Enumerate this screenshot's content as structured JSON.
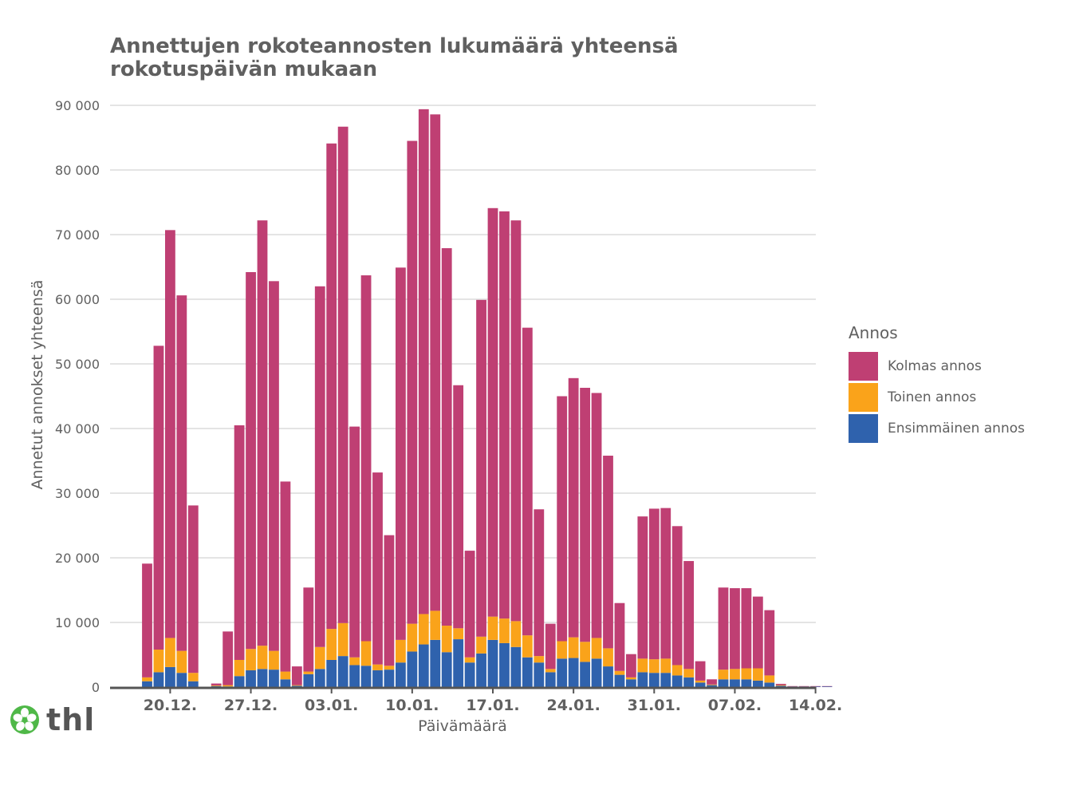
{
  "title_line1": "Annettujen rokoteannosten lukumäärä yhteensä",
  "title_line2": "rokotuspäivän mukaan",
  "logo_text": "thl",
  "colors": {
    "kolmas": "#bf3f73",
    "toinen": "#faa31a",
    "ensimmainen": "#2f62ad",
    "grid": "#dcdcdc",
    "axis": "#606060",
    "text": "#606060",
    "logo_green": "#4fb848"
  },
  "legend": {
    "title": "Annos",
    "items": [
      {
        "label": "Kolmas annos",
        "color": "#bf3f73"
      },
      {
        "label": "Toinen annos",
        "color": "#faa31a"
      },
      {
        "label": "Ensimmäinen annos",
        "color": "#2f62ad"
      }
    ]
  },
  "chart_data": {
    "type": "bar",
    "stacked": true,
    "title": "Annettujen rokoteannosten lukumäärä yhteensä rokotuspäivän mukaan",
    "xlabel": "Päivämäärä",
    "ylabel": "Annetut annokset yhteensä",
    "ylim": [
      0,
      90000
    ],
    "yticks": [
      0,
      10000,
      20000,
      30000,
      40000,
      50000,
      60000,
      70000,
      80000,
      90000
    ],
    "ytick_labels": [
      "0",
      "10 000",
      "20 000",
      "30 000",
      "40 000",
      "50 000",
      "60 000",
      "70 000",
      "80 000",
      "90 000"
    ],
    "xtick_labels": [
      "20.12.",
      "27.12.",
      "03.01.",
      "10.01.",
      "17.01.",
      "24.01.",
      "31.01.",
      "07.02.",
      "14.02."
    ],
    "xtick_day_index": [
      2,
      9,
      16,
      23,
      30,
      37,
      44,
      51,
      58
    ],
    "first_day_index": 0,
    "series": [
      {
        "name": "Ensimmäinen annos",
        "key": "ensimmainen",
        "values": [
          900,
          2300,
          3100,
          2200,
          900,
          0,
          150,
          100,
          1700,
          2600,
          2800,
          2700,
          1200,
          200,
          2000,
          2800,
          4200,
          4800,
          3400,
          3300,
          2600,
          2700,
          3800,
          5500,
          6600,
          7300,
          5400,
          7400,
          3800,
          5200,
          7300,
          6800,
          6200,
          4600,
          3800,
          2300,
          4400,
          4500,
          3900,
          4400,
          3200,
          1900,
          1200,
          2300,
          2200,
          2200,
          1800,
          1500,
          700,
          300,
          1200,
          1200,
          1200,
          1000,
          700,
          200,
          100,
          100,
          100,
          100
        ]
      },
      {
        "name": "Toinen annos",
        "key": "toinen",
        "values": [
          600,
          3500,
          4500,
          3400,
          1300,
          0,
          100,
          200,
          2500,
          3300,
          3600,
          2900,
          1200,
          100,
          400,
          3400,
          4800,
          5100,
          1200,
          3800,
          900,
          600,
          3500,
          4300,
          4700,
          4500,
          4100,
          1700,
          800,
          2600,
          3600,
          3800,
          4000,
          3400,
          1000,
          500,
          2700,
          3200,
          3100,
          3200,
          2800,
          600,
          300,
          2100,
          2100,
          2200,
          1600,
          1300,
          300,
          100,
          1500,
          1600,
          1700,
          1900,
          1100,
          100,
          0,
          0,
          0,
          0
        ]
      },
      {
        "name": "Kolmas annos",
        "key": "kolmas",
        "values": [
          17600,
          47000,
          63100,
          55000,
          25900,
          0,
          300,
          8300,
          36300,
          58300,
          65800,
          57200,
          29400,
          2900,
          13000,
          55800,
          75100,
          76800,
          35700,
          56600,
          29700,
          20200,
          57600,
          74700,
          78100,
          76800,
          58400,
          37600,
          16500,
          52100,
          63200,
          63000,
          62000,
          47600,
          22700,
          7000,
          37900,
          40100,
          39300,
          37900,
          29800,
          10500,
          3600,
          22000,
          23300,
          23300,
          21500,
          16700,
          3000,
          800,
          12700,
          12500,
          12400,
          11100,
          10100,
          200,
          50,
          50,
          50,
          50
        ]
      }
    ]
  }
}
